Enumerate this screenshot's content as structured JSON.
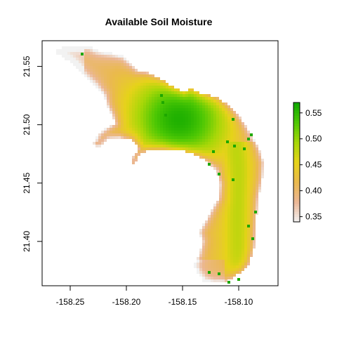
{
  "chart_data": {
    "type": "heatmap",
    "title": "Available Soil Moisture",
    "xlabel": "",
    "ylabel": "",
    "xlim": [
      -158.275,
      -158.065
    ],
    "ylim": [
      21.362,
      21.572
    ],
    "x_ticks": [
      -158.25,
      -158.2,
      -158.15,
      -158.1
    ],
    "x_tick_labels": [
      "-158.25",
      "-158.20",
      "-158.15",
      "-158.10"
    ],
    "y_ticks": [
      21.4,
      21.45,
      21.5,
      21.55
    ],
    "y_tick_labels": [
      "21.40",
      "21.45",
      "21.50",
      "21.55"
    ],
    "legend": {
      "placement": "right",
      "range": [
        0.34,
        0.57
      ],
      "ticks": [
        0.35,
        0.4,
        0.45,
        0.5,
        0.55
      ],
      "tick_labels": [
        "0.35",
        "0.40",
        "0.45",
        "0.50",
        "0.55"
      ],
      "colors": [
        "#f2f2f2",
        "#ebb796",
        "#eab94e",
        "#e6d319",
        "#a7d708",
        "#4ec804",
        "#0ea800"
      ]
    },
    "grid": false,
    "note_values": "Raster over an island region; highest values (~0.55) centered near -158.15, 21.505; lowest (~0.35) along the southwest fringe."
  }
}
